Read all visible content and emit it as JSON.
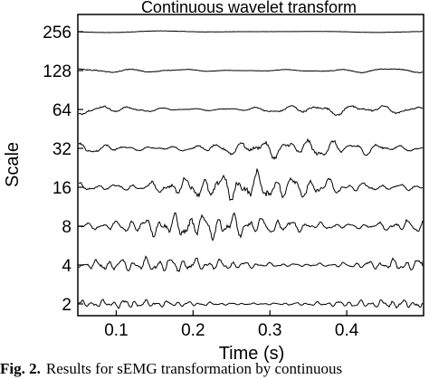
{
  "chart_data": {
    "type": "line",
    "title": "Continuous wavelet transform",
    "xlabel": "Time (s)",
    "ylabel": "Scale",
    "xlim": [
      0.05,
      0.5
    ],
    "xticks": [
      "0.1",
      "0.2",
      "0.3",
      "0.4"
    ],
    "xtick_values": [
      0.1,
      0.2,
      0.3,
      0.4
    ],
    "categories": [
      "256",
      "128",
      "64",
      "32",
      "16",
      "8",
      "4",
      "2"
    ],
    "series": [
      {
        "scale": "256",
        "amplitude": 0.05
      },
      {
        "scale": "128",
        "amplitude": 0.12
      },
      {
        "scale": "64",
        "amplitude": 0.25
      },
      {
        "scale": "32",
        "amplitude": 0.45
      },
      {
        "scale": "16",
        "amplitude": 0.7
      },
      {
        "scale": "8",
        "amplitude": 0.6
      },
      {
        "scale": "4",
        "amplitude": 0.35
      },
      {
        "scale": "2",
        "amplitude": 0.2
      }
    ],
    "grid": false,
    "line_color": "#000000"
  },
  "caption": {
    "label": "Fig. 2.",
    "text": "Results for sEMG transformation by continuous"
  }
}
